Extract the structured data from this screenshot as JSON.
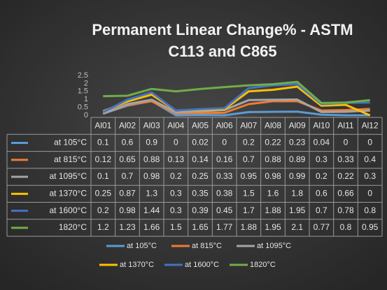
{
  "chart_data": {
    "type": "line",
    "title": "Permanent Linear Change% - ASTM C113 and C865",
    "categories": [
      "Al01",
      "Al02",
      "Al03",
      "Al04",
      "Al05",
      "Al06",
      "Al07",
      "Al08",
      "Al09",
      "Al10",
      "Al11",
      "Al12"
    ],
    "series": [
      {
        "name": "at 105°C",
        "color": "#5b9bd5",
        "values": [
          0.1,
          0.6,
          0.9,
          0,
          0.02,
          0,
          0.2,
          0.22,
          0.23,
          0.04,
          0,
          0
        ]
      },
      {
        "name": "at 815°C",
        "color": "#ed7d31",
        "values": [
          0.12,
          0.65,
          0.88,
          0.13,
          0.14,
          0.16,
          0.7,
          0.88,
          0.89,
          0.3,
          0.33,
          0.4
        ]
      },
      {
        "name": "at 1095°C",
        "color": "#a5a5a5",
        "values": [
          0.1,
          0.7,
          0.98,
          0.2,
          0.25,
          0.33,
          0.95,
          0.98,
          0.99,
          0.2,
          0.22,
          0.3
        ]
      },
      {
        "name": "at 1370°C",
        "color": "#ffc000",
        "values": [
          0.25,
          0.87,
          1.3,
          0.3,
          0.35,
          0.38,
          1.5,
          1.6,
          1.8,
          0.6,
          0.66,
          0
        ]
      },
      {
        "name": "at 1600°C",
        "color": "#4472c4",
        "values": [
          0.2,
          0.98,
          1.44,
          0.3,
          0.39,
          0.45,
          1.7,
          1.88,
          1.95,
          0.7,
          0.78,
          0.8
        ]
      },
      {
        "name": "1820°C",
        "color": "#70ad47",
        "values": [
          1.2,
          1.23,
          1.66,
          1.5,
          1.65,
          1.77,
          1.88,
          1.95,
          2.1,
          0.77,
          0.8,
          0.95
        ]
      }
    ],
    "ylim": [
      0,
      2.5
    ],
    "yticks": [
      0,
      0.5,
      1,
      1.5,
      2,
      2.5
    ],
    "grid": false,
    "legend": "bottom"
  }
}
